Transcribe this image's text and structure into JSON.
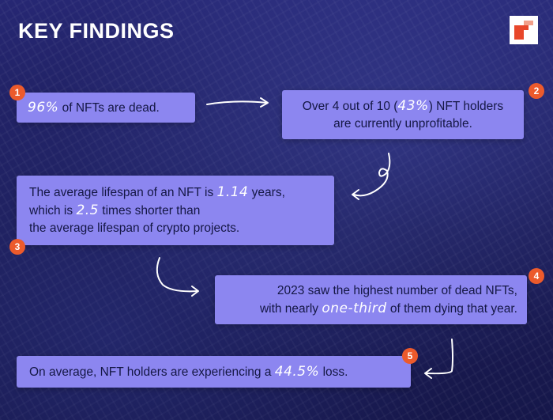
{
  "title": "KEY FINDINGS",
  "colors": {
    "background": "#1d1e57",
    "card": "#8c86f0",
    "badge": "#ec5a2c",
    "highlight": "#ffffff"
  },
  "logo": {
    "icon": "brand-logo-squares"
  },
  "findings": [
    {
      "number": "1",
      "highlight": "96%",
      "after": " of NFTs are dead."
    },
    {
      "number": "2",
      "line1_before": "Over 4 out of 10 (",
      "highlight": "43%",
      "line1_after": ") NFT holders",
      "line2": "are currently unprofitable."
    },
    {
      "number": "3",
      "line1_before": "The average lifespan of an NFT is ",
      "highlight1": "1.14",
      "line1_after": " years,",
      "line2_before": "which is ",
      "highlight2": "2.5",
      "line2_after": " times shorter than",
      "line3": "the average lifespan of crypto projects."
    },
    {
      "number": "4",
      "line1": "2023 saw the highest number of dead NFTs,",
      "line2_before": "with nearly ",
      "highlight": "one-third",
      "line2_after": " of them dying that year."
    },
    {
      "number": "5",
      "before": "On average, NFT holders are experiencing a ",
      "highlight": "44.5%",
      "after": " loss."
    }
  ]
}
